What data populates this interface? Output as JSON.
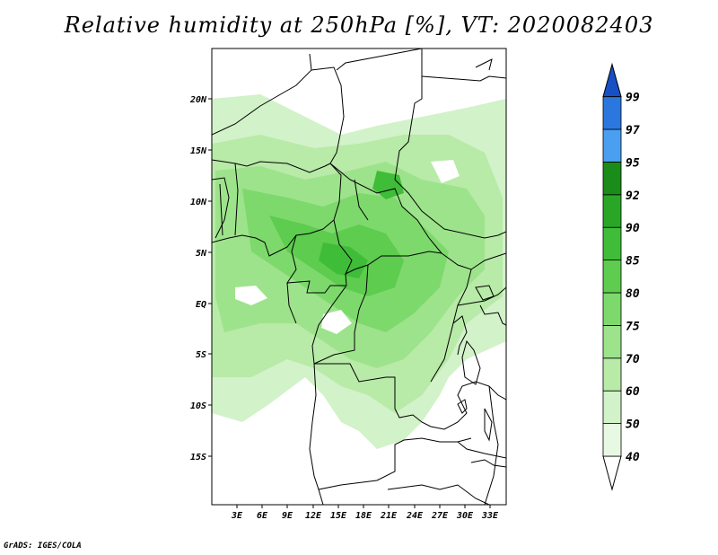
{
  "title": "Relative humidity at 250hPa [%], VT: 2020082403",
  "credit": "GrADS: IGES/COLA",
  "map": {
    "lat_labels": [
      "20N",
      "15N",
      "10N",
      "5N",
      "EQ",
      "5S",
      "10S",
      "15S"
    ],
    "lon_labels": [
      "3E",
      "6E",
      "9E",
      "12E",
      "15E",
      "18E",
      "21E",
      "24E",
      "27E",
      "30E",
      "33E"
    ]
  },
  "colorbar": {
    "labels": [
      "40",
      "50",
      "60",
      "70",
      "75",
      "80",
      "85",
      "90",
      "92",
      "95",
      "97",
      "99"
    ],
    "colors": [
      "#ffffff",
      "#e8f9e3",
      "#d2f2c9",
      "#b8eaa8",
      "#9de38b",
      "#7dd96c",
      "#5dcc4f",
      "#3fbd39",
      "#2aa627",
      "#1a8c1a",
      "#4a9ff0",
      "#2c77df",
      "#1650c4"
    ]
  }
}
